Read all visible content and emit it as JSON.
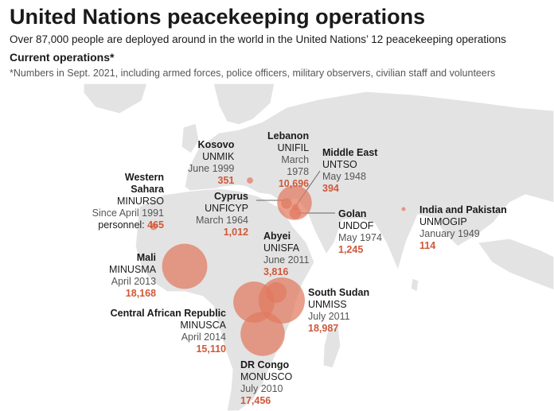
{
  "title": "United Nations peacekeeping operations",
  "subtitle": "Over 87,000 people are deployed around in the world in the United Nations’ 12 peacekeeping operations",
  "subheading": "Current operations*",
  "note": "*Numbers in Sept. 2021, including armed forces, police officers, military observers, civilian staff and volunteers",
  "colors": {
    "land": "#e3e3e3",
    "bubble": "#e07a5f",
    "number": "#d0583a",
    "leader": "#666666"
  },
  "operations": {
    "unmik": {
      "name": "Kosovo",
      "code": "UNMIK",
      "since": "June 1999",
      "personnel": 351
    },
    "unifil": {
      "name": "Lebanon",
      "code": "UNIFIL",
      "since_1": "March",
      "since_2": "1978",
      "personnel": 10696
    },
    "untso": {
      "name": "Middle East",
      "code": "UNTSO",
      "since": "May 1948",
      "personnel": 394
    },
    "minurso": {
      "name_1": "Western",
      "name_2": "Sahara",
      "code": "MINURSO",
      "since": "Since April 1991",
      "personnel_label": "personnel:",
      "personnel": 465
    },
    "unficyp": {
      "name": "Cyprus",
      "code": "UNFICYP",
      "since": "March 1964",
      "personnel": 1012
    },
    "undof": {
      "name": "Golan",
      "code": "UNDOF",
      "since": "May 1974",
      "personnel": 1245
    },
    "unmogip": {
      "name": "India and Pakistan",
      "code": "UNMOGIP",
      "since": "January 1949",
      "personnel": 114
    },
    "unisfa": {
      "name": "Abyei",
      "code": "UNISFA",
      "since": "June 2011",
      "personnel": 3816
    },
    "minusma": {
      "name": "Mali",
      "code": "MINUSMA",
      "since": "April 2013",
      "personnel": 18168
    },
    "unmiss": {
      "name": "South Sudan",
      "code": "UNMISS",
      "since": "July 2011",
      "personnel": 18987
    },
    "minusca": {
      "name": "Central African Republic",
      "code": "MINUSCA",
      "since": "April 2014",
      "personnel": 15110
    },
    "monusco": {
      "name": "DR Congo",
      "code": "MONUSCO",
      "since": "July 2010",
      "personnel": 17456
    }
  },
  "personnel_labels": {
    "unmik": "351",
    "unifil": "10,696",
    "untso": "394",
    "minurso": "465",
    "unficyp": "1,012",
    "undof": "1,245",
    "unmogip": "114",
    "unisfa": "3,816",
    "minusma": "18,168",
    "unmiss": "18,987",
    "minusca": "15,110",
    "monusco": "17,456"
  }
}
